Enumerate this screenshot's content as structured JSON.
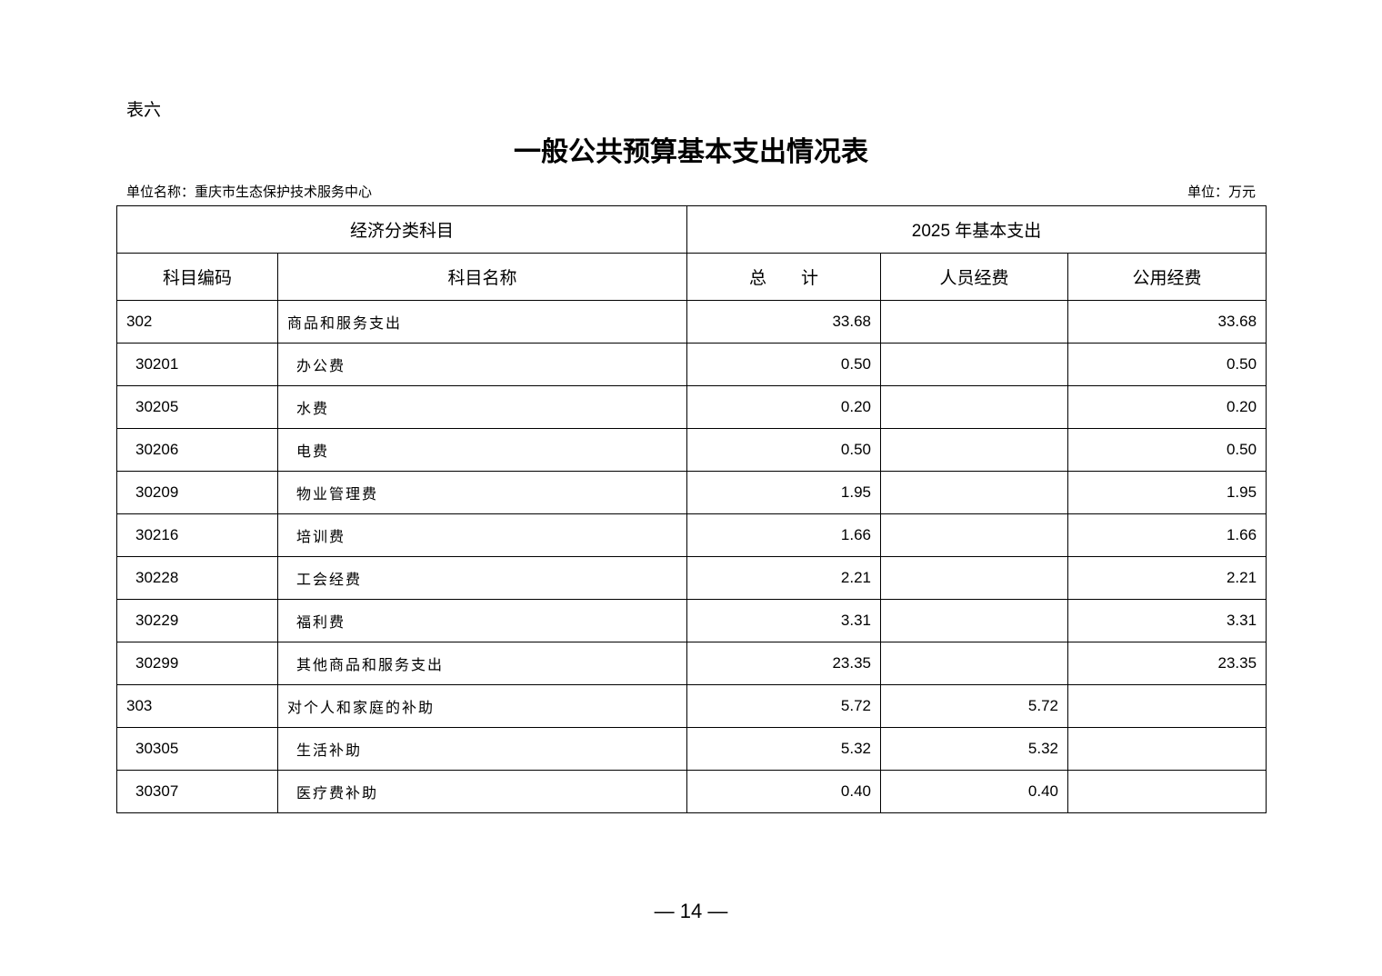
{
  "table_label": "表六",
  "title": "一般公共预算基本支出情况表",
  "unit_name": "单位名称：重庆市生态保护技术服务中心",
  "unit": "单位：万元",
  "headers": {
    "group1": "经济分类科目",
    "group2": "2025 年基本支出",
    "code": "科目编码",
    "name": "科目名称",
    "total": "总　　计",
    "personnel": "人员经费",
    "public": "公用经费"
  },
  "rows": [
    {
      "code": "302",
      "name": "商品和服务支出",
      "total": "33.68",
      "personnel": "",
      "public": "33.68",
      "sub": false
    },
    {
      "code": "30201",
      "name": "办公费",
      "total": "0.50",
      "personnel": "",
      "public": "0.50",
      "sub": true
    },
    {
      "code": "30205",
      "name": "水费",
      "total": "0.20",
      "personnel": "",
      "public": "0.20",
      "sub": true
    },
    {
      "code": "30206",
      "name": "电费",
      "total": "0.50",
      "personnel": "",
      "public": "0.50",
      "sub": true
    },
    {
      "code": "30209",
      "name": "物业管理费",
      "total": "1.95",
      "personnel": "",
      "public": "1.95",
      "sub": true
    },
    {
      "code": "30216",
      "name": "培训费",
      "total": "1.66",
      "personnel": "",
      "public": "1.66",
      "sub": true
    },
    {
      "code": "30228",
      "name": "工会经费",
      "total": "2.21",
      "personnel": "",
      "public": "2.21",
      "sub": true
    },
    {
      "code": "30229",
      "name": "福利费",
      "total": "3.31",
      "personnel": "",
      "public": "3.31",
      "sub": true
    },
    {
      "code": "30299",
      "name": "其他商品和服务支出",
      "total": "23.35",
      "personnel": "",
      "public": "23.35",
      "sub": true
    },
    {
      "code": "303",
      "name": "对个人和家庭的补助",
      "total": "5.72",
      "personnel": "5.72",
      "public": "",
      "sub": false
    },
    {
      "code": "30305",
      "name": "生活补助",
      "total": "5.32",
      "personnel": "5.32",
      "public": "",
      "sub": true
    },
    {
      "code": "30307",
      "name": "医疗费补助",
      "total": "0.40",
      "personnel": "0.40",
      "public": "",
      "sub": true
    }
  ],
  "page_number": "— 14 —"
}
